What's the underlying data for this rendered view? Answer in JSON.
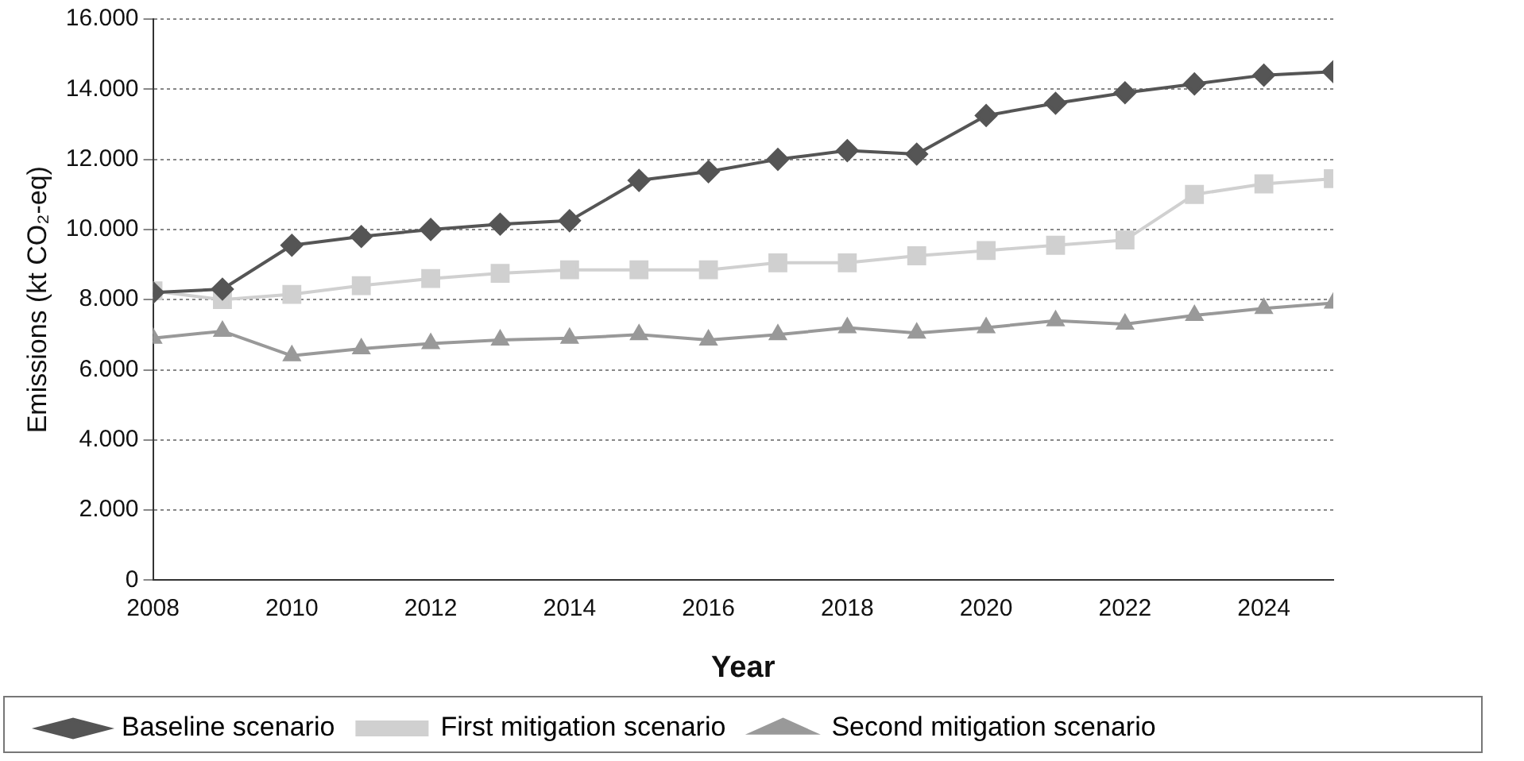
{
  "chart_data": {
    "type": "line",
    "xlabel": "Year",
    "ylabel": "Emissions (kt CO₂-eq)",
    "x": [
      2008,
      2009,
      2010,
      2011,
      2012,
      2013,
      2014,
      2015,
      2016,
      2017,
      2018,
      2019,
      2020,
      2021,
      2022,
      2023,
      2024,
      2025
    ],
    "xlim": [
      2008,
      2025
    ],
    "xticks": [
      2008,
      2010,
      2012,
      2014,
      2016,
      2018,
      2020,
      2022,
      2024
    ],
    "ylim": [
      0,
      16000
    ],
    "yticks": [
      {
        "value": 0,
        "label": "0"
      },
      {
        "value": 2000,
        "label": "2.000"
      },
      {
        "value": 4000,
        "label": "4.000"
      },
      {
        "value": 6000,
        "label": "6.000"
      },
      {
        "value": 8000,
        "label": "8.000"
      },
      {
        "value": 10000,
        "label": "10.000"
      },
      {
        "value": 12000,
        "label": "12.000"
      },
      {
        "value": 14000,
        "label": "14.000"
      },
      {
        "value": 16000,
        "label": "16.000"
      }
    ],
    "grid": "y",
    "legend": "bottom",
    "line_style": "solid",
    "series": [
      {
        "name": "Baseline scenario",
        "color": "#555555",
        "marker": "diamond",
        "values": [
          8200,
          8300,
          9550,
          9800,
          10000,
          10150,
          10250,
          11400,
          11650,
          12000,
          12250,
          12150,
          13250,
          13600,
          13900,
          14150,
          14400,
          14500
        ]
      },
      {
        "name": "First mitigation scenario",
        "color": "#d0d0d0",
        "marker": "square",
        "values": [
          8250,
          8000,
          8150,
          8400,
          8600,
          8750,
          8850,
          8850,
          8850,
          9050,
          9050,
          9250,
          9400,
          9550,
          9700,
          11000,
          11300,
          11450
        ]
      },
      {
        "name": "Second mitigation scenario",
        "color": "#999999",
        "marker": "triangle",
        "values": [
          6900,
          7100,
          6400,
          6600,
          6750,
          6850,
          6900,
          7000,
          6850,
          7000,
          7200,
          7050,
          7200,
          7400,
          7300,
          7550,
          7750,
          7900
        ]
      }
    ]
  }
}
